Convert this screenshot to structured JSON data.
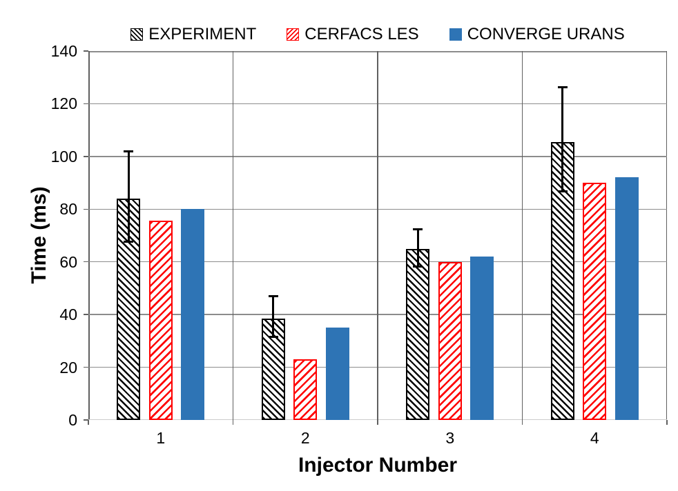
{
  "chart_data": {
    "type": "bar",
    "title": "",
    "xlabel": "Injector Number",
    "ylabel": "Time (ms)",
    "categories": [
      "1",
      "2",
      "3",
      "4"
    ],
    "ylim": [
      0,
      140
    ],
    "ytick_step": 20,
    "grid": true,
    "legend_position": "top",
    "series": [
      {
        "name": "EXPERIMENT",
        "style": "hatch-black",
        "color": "#000000",
        "values": [
          84,
          38.5,
          65,
          105.5
        ],
        "error_upper": [
          102,
          47,
          72.5,
          126.5
        ],
        "error_lower": [
          67.5,
          31.5,
          58,
          86.5
        ]
      },
      {
        "name": "CERFACS LES",
        "style": "hatch-red",
        "color": "#ff0000",
        "values": [
          75.5,
          23,
          60,
          90
        ]
      },
      {
        "name": "CONVERGE URANS",
        "style": "solid-blue",
        "color": "#2e74b5",
        "values": [
          80,
          35,
          62,
          92
        ]
      }
    ],
    "colors": {
      "gridline": "#8c8c8c",
      "plot_border": "#5f5f5f",
      "axis_line": "#cccccc",
      "background": "#ffffff"
    }
  }
}
